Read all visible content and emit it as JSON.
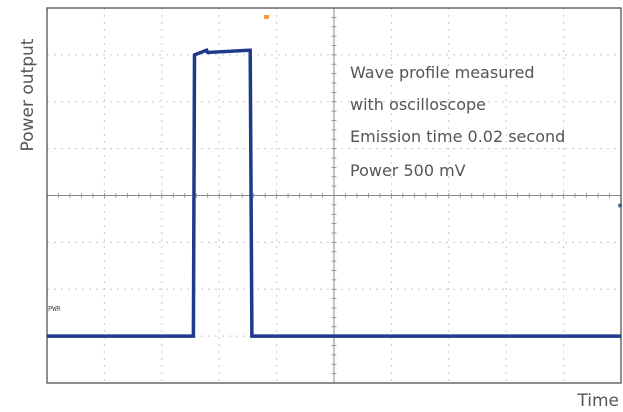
{
  "chart_data": {
    "type": "line",
    "xlabel": "Time",
    "ylabel": "Power output",
    "x_divisions": 10,
    "y_divisions": 8,
    "grid": true,
    "baseline_marker": "PWR",
    "series": [
      {
        "x": [
          0,
          2.55,
          2.57,
          2.78,
          2.8,
          3.52,
          3.54,
          3.57,
          10
        ],
        "y": [
          -3.0,
          -3.0,
          3.0,
          3.1,
          3.05,
          3.1,
          3.1,
          -3.0,
          -3.0
        ]
      }
    ],
    "annotations": [
      "Wave profile measured",
      "with oscilloscope",
      "Emission time 0.02 second",
      "Power 500 mV"
    ]
  },
  "colors": {
    "trace": "#1f3a8a",
    "grid": "#c8c8c8",
    "frame": "#444444",
    "axis_line": "#888888",
    "trigger_marker": "#f0a040"
  }
}
